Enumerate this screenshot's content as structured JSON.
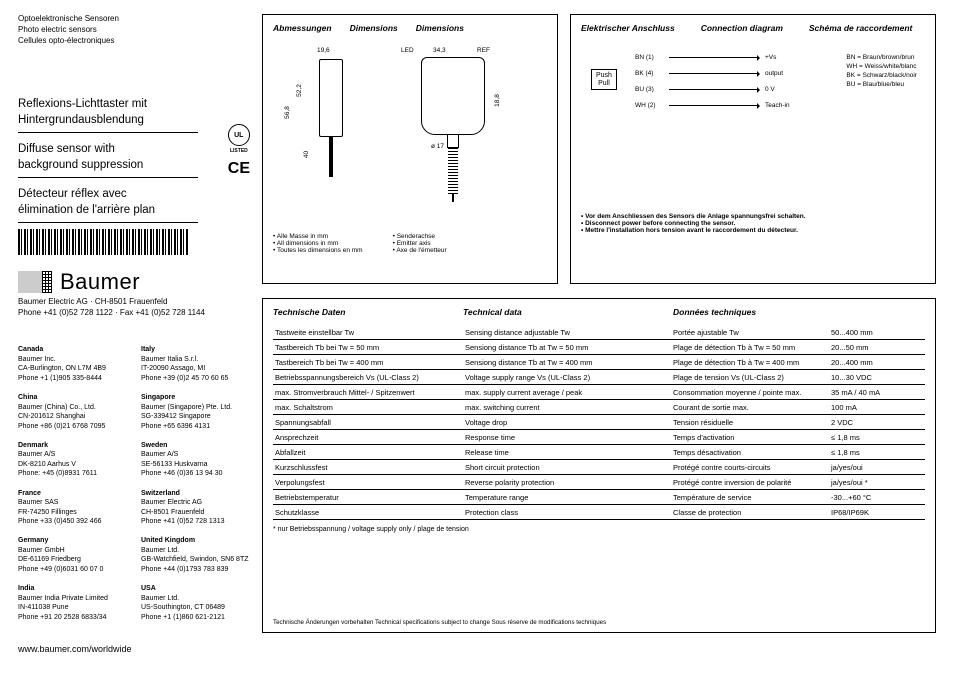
{
  "header": {
    "l1": "Optoelektronische Sensoren",
    "l2": "Photo electric sensors",
    "l3": "Cellules opto-électroniques"
  },
  "product": {
    "de1": "Reflexions-Lichttaster mit",
    "de2": "Hintergrundausblendung",
    "en1": "Diffuse sensor with",
    "en2": "background suppression",
    "fr1": "Détecteur réflex avec",
    "fr2": "élimination de l'arrière plan"
  },
  "cert": {
    "ul": "UL",
    "listed": "LISTED",
    "ce": "CE"
  },
  "logo": {
    "name": "Baumer"
  },
  "company": {
    "line1": "Baumer Electric AG · CH-8501 Frauenfeld",
    "line2": "Phone +41 (0)52 728 1122 · Fax +41 (0)52 728 1144"
  },
  "contacts": [
    {
      "country": "Canada",
      "l1": "Baumer Inc.",
      "l2": "CA-Burlington, ON L7M 4B9",
      "l3": "Phone +1 (1)905 335-8444"
    },
    {
      "country": "China",
      "l1": "Baumer (China) Co., Ltd.",
      "l2": "CN-201612 Shanghai",
      "l3": "Phone +86 (0)21 6768 7095"
    },
    {
      "country": "Denmark",
      "l1": "Baumer A/S",
      "l2": "DK-8210 Aarhus V",
      "l3": "Phone: +45 (0)8931 7611"
    },
    {
      "country": "France",
      "l1": "Baumer SAS",
      "l2": "FR-74250 Fillinges",
      "l3": "Phone +33 (0)450 392 466"
    },
    {
      "country": "Germany",
      "l1": "Baumer GmbH",
      "l2": "DE-61169 Friedberg",
      "l3": "Phone +49 (0)6031 60 07 0"
    },
    {
      "country": "India",
      "l1": "Baumer India Private Limited",
      "l2": "IN-411038 Pune",
      "l3": "Phone +91 20 2528 6833/34"
    },
    {
      "country": "Italy",
      "l1": "Baumer Italia S.r.l.",
      "l2": "IT-20090 Assago, MI",
      "l3": "Phone +39 (0)2 45 70 60 65"
    },
    {
      "country": "Singapore",
      "l1": "Baumer (Singapore) Pte. Ltd.",
      "l2": "SG-339412 Singapore",
      "l3": "Phone +65 6396 4131"
    },
    {
      "country": "Sweden",
      "l1": "Baumer A/S",
      "l2": "SE-56133 Huskvarna",
      "l3": "Phone +46 (0)36 13 94 30"
    },
    {
      "country": "Switzerland",
      "l1": "Baumer Electric AG",
      "l2": "CH-8501 Frauenfeld",
      "l3": "Phone +41 (0)52 728 1313"
    },
    {
      "country": "United Kingdom",
      "l1": "Baumer Ltd.",
      "l2": "GB-Watchfield, Swindon, SN6 8TZ",
      "l3": "Phone +44 (0)1793 783 839"
    },
    {
      "country": "USA",
      "l1": "Baumer Ltd.",
      "l2": "US-Southington, CT 06489",
      "l3": "Phone +1 (1)860 621-2121"
    }
  ],
  "website": "www.baumer.com/worldwide",
  "dimBox": {
    "t1": "Abmessungen",
    "t2": "Dimensions",
    "t3": "Dimensions",
    "d196": "19,6",
    "d522": "52,2",
    "d568": "56,8",
    "d40": "40",
    "led": "LED",
    "d343": "34,3",
    "ref": "REF",
    "d188": "18,8",
    "d17": "ø 17",
    "n1": "Alle Masse in mm",
    "n2": "All dimensions in mm",
    "n3": "Toutes les dimensions en mm",
    "m1": "Senderachse",
    "m2": "Emitter axis",
    "m3": "Axe de l'émetteur"
  },
  "connBox": {
    "t1": "Elektrischer Anschluss",
    "t2": "Connection diagram",
    "t3": "Schéma de raccordement",
    "push": "Push",
    "pull": "Pull",
    "bn": "BN (1)",
    "bk": "BK (4)",
    "bu": "BU (3)",
    "wh": "WH (2)",
    "vs": "+Vs",
    "out": "output",
    "zero": "0 V",
    "teach": "Teach-in",
    "leg1": "BN = Braun/brown/brun",
    "leg2": "WH = Weiss/white/blanc",
    "leg3": "BK = Schwarz/black/noir",
    "leg4": "BU = Blau/blue/bleu",
    "note1": "Vor dem Anschliessen des Sensors die Anlage spannungsfrei schalten.",
    "note2": "Disconnect power before connecting the sensor.",
    "note3": "Mettre l'installation hors tension avant le raccordement du détecteur."
  },
  "techBox": {
    "h1": "Technische Daten",
    "h2": "Technical data",
    "h3": "Données techniques",
    "rows": [
      [
        "Tastweite einstellbar Tw",
        "Sensing distance adjustable Tw",
        "Portée ajustable Tw",
        "50...400 mm"
      ],
      [
        "Tastbereich Tb bei Tw = 50 mm",
        "Sensiong distance Tb at Tw = 50 mm",
        "Plage de détection Tb à Tw = 50 mm",
        "20...50 mm"
      ],
      [
        "Tastbereich Tb bei Tw = 400 mm",
        "Sensiong distance Tb at Tw = 400 mm",
        "Plage de détection Tb à Tw = 400 mm",
        "20...400 mm"
      ],
      [
        "Betriebsspannungsbereich Vs (UL-Class 2)",
        "Voltage supply range Vs (UL-Class 2)",
        "Plage de tension Vs (UL-Class 2)",
        "10...30 VDC"
      ],
      [
        "max. Stromverbrauch Mittel- / Spitzenwert",
        "max. supply current average / peak",
        "Consommation moyenne / pointe max.",
        "35 mA / 40 mA"
      ],
      [
        "max. Schaltstrom",
        "max. switching current",
        "Courant de sortie max.",
        "100 mA"
      ],
      [
        "Spannungsabfall",
        "Voltage drop",
        "Tension résiduelle",
        "2 VDC"
      ],
      [
        "Ansprechzeit",
        "Response time",
        "Temps d'activation",
        "≤ 1,8 ms"
      ],
      [
        "Abfallzeit",
        "Release time",
        "Temps désactivation",
        "≤ 1,8 ms"
      ],
      [
        "Kurzschlussfest",
        "Short circuit protection",
        "Protégé contre courts-circuits",
        "ja/yes/oui"
      ],
      [
        "Verpolungsfest",
        "Reverse polarity protection",
        "Protégé contre inversion de polarité",
        "ja/yes/oui *"
      ],
      [
        "Betriebstemperatur",
        "Temperature range",
        "Température de service",
        "-30...+60 °C"
      ],
      [
        "Schutzklasse",
        "Protection class",
        "Classe de protection",
        "IP68/IP69K"
      ]
    ],
    "footnote": "* nur Betriebsspannung / voltage supply only / plage de tension",
    "disclaimer": "Technische Änderungen vorbehalten   Technical specifications subject to change   Sous réserve de modifications techniques"
  }
}
